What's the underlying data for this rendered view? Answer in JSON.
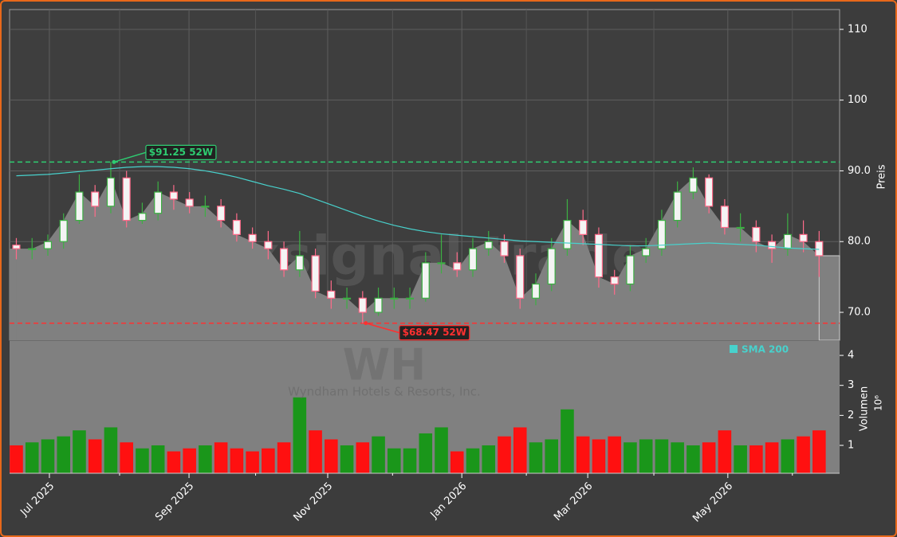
{
  "chart_data": {
    "type": "candlestick",
    "watermark": "forexsignal.trade",
    "ticker": "WH",
    "company": "Wyndham Hotels & Resorts, Inc.",
    "categories": [
      null,
      null,
      null,
      null,
      null,
      null,
      null,
      null,
      null,
      null,
      null,
      null,
      null,
      null,
      null,
      null,
      null,
      null,
      null,
      null,
      null,
      null,
      null,
      null,
      null,
      null,
      null,
      null,
      null,
      null,
      null,
      null,
      null,
      null,
      null,
      null,
      null,
      null,
      null,
      null,
      null,
      null,
      null,
      null,
      null,
      null,
      null,
      null,
      null,
      null,
      null,
      null
    ],
    "open": [
      79.5,
      79,
      79,
      80,
      83,
      87,
      85,
      89,
      83,
      84,
      87,
      86,
      85,
      85,
      83,
      81,
      80,
      79,
      76,
      78,
      73,
      72,
      72,
      70,
      72,
      72,
      72,
      77,
      77,
      76,
      79,
      80,
      78,
      72,
      74,
      79,
      83,
      81,
      75,
      74,
      78,
      79,
      83,
      87,
      89,
      85,
      82,
      82,
      80,
      79,
      81,
      80
    ],
    "high": [
      80.5,
      80.5,
      81,
      84,
      89.5,
      88,
      91.25,
      90,
      85.5,
      88.5,
      88,
      87,
      86.5,
      86,
      84,
      82,
      81.5,
      80,
      81.5,
      79,
      74.5,
      73.5,
      73,
      73.5,
      73.5,
      73.5,
      78.5,
      81,
      78.5,
      80.5,
      81.5,
      81,
      79,
      75.5,
      80.5,
      86,
      84.5,
      82,
      76,
      79.5,
      80.5,
      84.5,
      88.5,
      90.5,
      89.5,
      86,
      84,
      83,
      81,
      84,
      83,
      81.5
    ],
    "low": [
      77.5,
      77.5,
      78,
      79,
      82.5,
      83.5,
      84,
      82,
      82.5,
      83,
      84.5,
      84,
      83.5,
      82,
      80,
      79,
      77.5,
      75,
      75,
      72,
      70.5,
      70.5,
      68.47,
      69.5,
      70.5,
      70.5,
      71.5,
      75.5,
      75,
      75,
      78,
      77,
      70.5,
      71,
      73,
      78,
      79.5,
      73.5,
      72.5,
      73,
      77,
      78,
      82,
      86,
      84,
      81,
      80,
      78.5,
      77,
      78,
      78.5,
      75
    ],
    "close": [
      79,
      79,
      80,
      83,
      87,
      85,
      89,
      83,
      84,
      87,
      86,
      85,
      85,
      83,
      81,
      80,
      79,
      76,
      78,
      73,
      72,
      72,
      70,
      72,
      72,
      72,
      77,
      77,
      76,
      79,
      80,
      78,
      72,
      74,
      79,
      83,
      81,
      75,
      74,
      78,
      79,
      83,
      87,
      89,
      85,
      82,
      82,
      80,
      79,
      81,
      80,
      78
    ],
    "volume": [
      1.0,
      1.1,
      1.2,
      1.3,
      1.5,
      1.2,
      1.6,
      1.1,
      0.9,
      1.0,
      0.8,
      0.9,
      1.0,
      1.1,
      0.9,
      0.8,
      0.9,
      1.1,
      2.6,
      1.5,
      1.2,
      1.0,
      1.1,
      1.3,
      0.9,
      0.9,
      1.4,
      1.6,
      0.8,
      0.9,
      1.0,
      1.3,
      1.6,
      1.1,
      1.2,
      2.2,
      1.3,
      1.2,
      1.3,
      1.1,
      1.2,
      1.2,
      1.1,
      1.0,
      1.1,
      1.5,
      1.0,
      1.0,
      1.1,
      1.2,
      1.3,
      1.5
    ],
    "up_color": "#3cb043",
    "down_color": "#ff6b8a",
    "volume_up_color": "#1a961a",
    "volume_down_color": "#ff1010",
    "area_color": "#808080",
    "sma": {
      "name": "SMA 200",
      "color": "#48d1cc",
      "values": [
        89.3,
        89.4,
        89.5,
        89.7,
        89.9,
        90.1,
        90.3,
        90.5,
        90.6,
        90.6,
        90.5,
        90.3,
        90.0,
        89.6,
        89.1,
        88.5,
        87.9,
        87.4,
        86.8,
        86.0,
        85.2,
        84.4,
        83.6,
        82.9,
        82.3,
        81.8,
        81.4,
        81.1,
        80.9,
        80.7,
        80.5,
        80.3,
        80.1,
        80.0,
        79.9,
        79.8,
        79.7,
        79.6,
        79.5,
        79.4,
        79.4,
        79.5,
        79.6,
        79.7,
        79.8,
        79.7,
        79.6,
        79.5,
        79.3,
        79.1,
        79.0,
        78.9
      ]
    },
    "high_52w": {
      "value": 91.25,
      "label": "$91.25 52W",
      "color": "#2ecc71",
      "index": 6
    },
    "low_52w": {
      "value": 68.47,
      "label": "$68.47 52W",
      "color": "#ff3030",
      "index": 22
    },
    "ylabel": "Preis",
    "ylim": [
      66.06,
      112.8
    ],
    "yticks": [
      {
        "value": 70,
        "label": "70.0"
      },
      {
        "value": 80,
        "label": "80.0"
      },
      {
        "value": 90,
        "label": "90.0"
      },
      100,
      110
    ],
    "volume_label": "Volumen",
    "volume_multiplier": "10⁶",
    "volume_ylim": [
      0.07,
      4.48
    ],
    "volume_yticks": [
      1,
      2,
      3,
      4
    ],
    "xlim": [
      -0.43,
      52.3
    ],
    "xticks": [
      {
        "value": 2.1,
        "label": "Jul 2025"
      },
      {
        "value": 10.97,
        "label": "Sep 2025"
      },
      {
        "value": 19.78,
        "label": "Nov 2025"
      },
      {
        "value": 28.3,
        "label": "Jan 2026"
      },
      {
        "value": 36.3,
        "label": "Mar 2026"
      },
      {
        "value": 45.2,
        "label": "May 2026"
      }
    ],
    "minor_xticks": [
      6.56,
      15.2,
      23.9,
      32.4,
      40.5,
      49.3
    ],
    "grid": true
  }
}
